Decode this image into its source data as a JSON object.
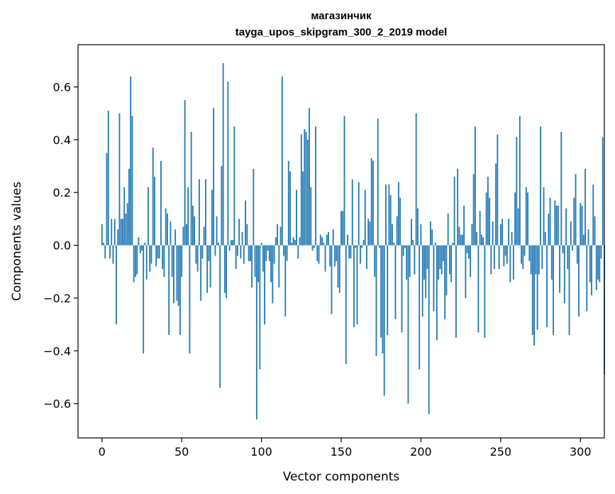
{
  "chart_data": {
    "type": "bar",
    "title": "магазинчик",
    "subtitle": "tayga_upos_skipgram_300_2_2019 model",
    "xlabel": "Vector components",
    "ylabel": "Components values",
    "xlim": [
      -15,
      315
    ],
    "ylim": [
      -0.73,
      0.76
    ],
    "xticks": [
      0,
      50,
      100,
      150,
      200,
      250,
      300
    ],
    "yticks": [
      -0.6,
      -0.4,
      -0.2,
      0.0,
      0.2,
      0.4,
      0.6
    ],
    "xtick_labels": [
      "0",
      "50",
      "100",
      "150",
      "200",
      "250",
      "300"
    ],
    "ytick_labels": [
      "−0.6",
      "−0.4",
      "−0.2",
      "0.0",
      "0.2",
      "0.4",
      "0.6"
    ],
    "bar_color": "#1f77b4",
    "grid": false,
    "legend": "none",
    "values": [
      0.08,
      0.01,
      -0.05,
      0.35,
      0.51,
      -0.05,
      0.1,
      -0.07,
      0.1,
      -0.3,
      0.06,
      0.5,
      0.1,
      0.1,
      0.22,
      0.12,
      0.16,
      0.29,
      0.64,
      0.49,
      -0.14,
      -0.12,
      -0.11,
      0.03,
      -0.03,
      -0.02,
      -0.41,
      0.01,
      -0.13,
      0.22,
      -0.1,
      -0.07,
      0.37,
      0.26,
      -0.08,
      -0.05,
      -0.05,
      0.32,
      -0.09,
      -0.12,
      0.14,
      0.12,
      -0.34,
      0.09,
      -0.12,
      -0.22,
      0.06,
      -0.21,
      -0.23,
      -0.34,
      -0.12,
      0.07,
      0.55,
      0.08,
      0.22,
      -0.41,
      0.43,
      0.15,
      0.11,
      -0.07,
      -0.1,
      0.25,
      -0.21,
      -0.05,
      0.07,
      0.25,
      -0.18,
      -0.06,
      -0.16,
      0.21,
      0.52,
      -0.04,
      0.11,
      0.01,
      -0.54,
      0.3,
      0.69,
      -0.18,
      -0.2,
      0.62,
      -0.02,
      0.02,
      0.02,
      0.45,
      -0.09,
      -0.04,
      0.1,
      -0.05,
      0.05,
      -0.07,
      0.17,
      0.08,
      -0.06,
      -0.06,
      -0.16,
      0.29,
      -0.12,
      -0.66,
      -0.14,
      -0.47,
      0.01,
      -0.1,
      -0.3,
      -0.06,
      -0.02,
      -0.06,
      -0.14,
      -0.22,
      -0.07,
      0.03,
      0.08,
      -0.16,
      0.07,
      0.64,
      -0.04,
      -0.27,
      -0.06,
      0.32,
      0.28,
      0.01,
      0.03,
      0.02,
      0.21,
      -0.05,
      0.03,
      0.42,
      0.28,
      0.44,
      0.43,
      0.4,
      0.52,
      0.22,
      -0.02,
      -0.01,
      0.45,
      -0.06,
      -0.07,
      0.04,
      0.03,
      0.01,
      -0.1,
      0.04,
      0.05,
      -0.08,
      -0.26,
      0.06,
      -0.08,
      -0.06,
      -0.16,
      -0.18,
      0.13,
      0.13,
      0.49,
      -0.45,
      0.04,
      -0.05,
      -0.05,
      0.25,
      -0.31,
      -0.01,
      -0.3,
      0.24,
      -0.07,
      -0.01,
      0.02,
      0.21,
      -0.09,
      0.1,
      0.09,
      0.33,
      0.32,
      -0.12,
      -0.42,
      0.48,
      -0.01,
      -0.35,
      -0.41,
      -0.57,
      0.23,
      -0.34,
      0.23,
      0.19,
      0.08,
      0.01,
      -0.28,
      0.11,
      0.24,
      0.18,
      -0.33,
      -0.04,
      -0.01,
      -0.13,
      -0.6,
      -0.12,
      0.1,
      0.02,
      -0.11,
      0.5,
      0.14,
      -0.47,
      0.08,
      -0.27,
      -0.13,
      -0.2,
      -0.09,
      -0.64,
      0.09,
      0.06,
      -0.25,
      0.01,
      -0.36,
      -0.13,
      -0.09,
      -0.11,
      -0.06,
      -0.28,
      -0.19,
      0.12,
      -0.11,
      -0.14,
      0.01,
      0.26,
      -0.35,
      0.29,
      0.07,
      0.04,
      0.04,
      0.15,
      -0.2,
      -0.03,
      -0.05,
      -0.12,
      0.08,
      0.27,
      0.45,
      0.05,
      -0.33,
      0.13,
      0.04,
      0.03,
      -0.35,
      0.2,
      0.26,
      0.18,
      -0.11,
      0.09,
      -0.09,
      0.31,
      0.42,
      -0.09,
      0.08,
      0.1,
      -0.08,
      -0.04,
      -0.07,
      0.1,
      -0.14,
      0.05,
      -0.13,
      0.2,
      0.41,
      0.14,
      0.49,
      -0.07,
      -0.09,
      -0.04,
      0.22,
      0.2,
      -0.06,
      -0.11,
      -0.34,
      -0.38,
      -0.11,
      -0.32,
      -0.11,
      0.45,
      -0.09,
      0.22,
      0.05,
      -0.31,
      0.12,
      0.18,
      -0.13,
      -0.34,
      0.17,
      0.15,
      0.15,
      -0.18,
      0.43,
      -0.03,
      -0.22,
      0.14,
      -0.09,
      -0.34,
      0.09,
      -0.02,
      0.18,
      0.27,
      -0.07,
      -0.27,
      0.16,
      0.15,
      0.04,
      0.29,
      -0.25,
      0.06,
      -0.14,
      -0.19,
      0.23,
      0.11,
      -0.17,
      -0.13,
      -0.14,
      -0.05,
      0.41,
      -0.49
    ]
  }
}
